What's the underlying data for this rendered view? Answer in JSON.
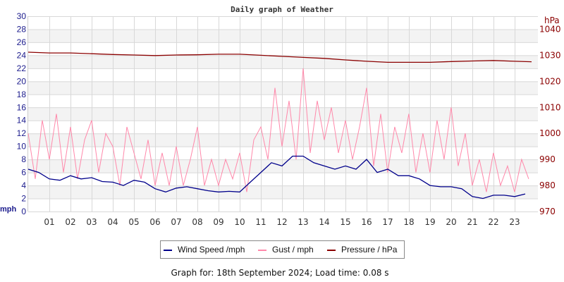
{
  "chart_data": {
    "type": "line",
    "title": "Daily graph of Weather",
    "left_axis": {
      "label": "mph",
      "range": [
        0,
        30
      ],
      "ticks": [
        0,
        2,
        4,
        6,
        8,
        10,
        12,
        14,
        16,
        18,
        20,
        22,
        24,
        26,
        28,
        30
      ],
      "color": "#1a1a8c"
    },
    "right_axis": {
      "label": "hPa",
      "range": [
        970,
        1045
      ],
      "ticks": [
        970,
        980,
        990,
        1000,
        1010,
        1020,
        1030,
        1040
      ],
      "color": "#8b0000"
    },
    "x_axis": {
      "range": [
        0,
        24
      ],
      "tick_labels": [
        "01",
        "02",
        "03",
        "04",
        "05",
        "06",
        "07",
        "08",
        "09",
        "10",
        "11",
        "12",
        "13",
        "14",
        "15",
        "16",
        "17",
        "18",
        "19",
        "20",
        "21",
        "22",
        "23"
      ]
    },
    "grid": true,
    "legend_placement": "bottom",
    "series": [
      {
        "name": "Wind Speed /mph",
        "color": "#00008b",
        "axis": "left",
        "x_step_hours": 0.5,
        "values": [
          6.5,
          6,
          5,
          4.8,
          5.5,
          5,
          5.2,
          4.6,
          4.5,
          4,
          4.8,
          4.5,
          3.5,
          3,
          3.6,
          3.8,
          3.5,
          3.2,
          3,
          3.1,
          3,
          4.5,
          6,
          7.5,
          7,
          8.5,
          8.5,
          7.5,
          7,
          6.5,
          7,
          6.5,
          8,
          6,
          6.5,
          5.5,
          5.5,
          5,
          4,
          3.8,
          3.8,
          3.5,
          2.3,
          2,
          2.5,
          2.5,
          2.3,
          2.7
        ]
      },
      {
        "name": "Gust / mph",
        "color": "#ff88aa",
        "axis": "left",
        "x_step_hours": 0.3333,
        "values": [
          12,
          5,
          14,
          8,
          15,
          6,
          13,
          5,
          11,
          14,
          6,
          12,
          10,
          4,
          13,
          9,
          5,
          11,
          4,
          9,
          4,
          10,
          4,
          8,
          13,
          4,
          8,
          4,
          8,
          5,
          9,
          3,
          11,
          13,
          8,
          19,
          10,
          17,
          8,
          22,
          9,
          17,
          11,
          16,
          9,
          14,
          8,
          13,
          19,
          7,
          15,
          6,
          13,
          9,
          15,
          6,
          12,
          6,
          14,
          8,
          16,
          7,
          12,
          4,
          8,
          3,
          9,
          4,
          7,
          3,
          8,
          5
        ]
      },
      {
        "name": "Pressure / hPa",
        "color": "#8b0000",
        "axis": "right",
        "x_step_hours": 1,
        "values": [
          1031.2,
          1030.9,
          1030.9,
          1030.6,
          1030.3,
          1030.1,
          1029.9,
          1030.1,
          1030.2,
          1030.4,
          1030.4,
          1030.0,
          1029.6,
          1029.2,
          1028.8,
          1028.2,
          1027.7,
          1027.3,
          1027.3,
          1027.3,
          1027.6,
          1027.8,
          1028.0,
          1027.7,
          1027.5
        ]
      }
    ]
  },
  "footer": "Graph for: 18th September 2024; Load time: 0.08 s"
}
